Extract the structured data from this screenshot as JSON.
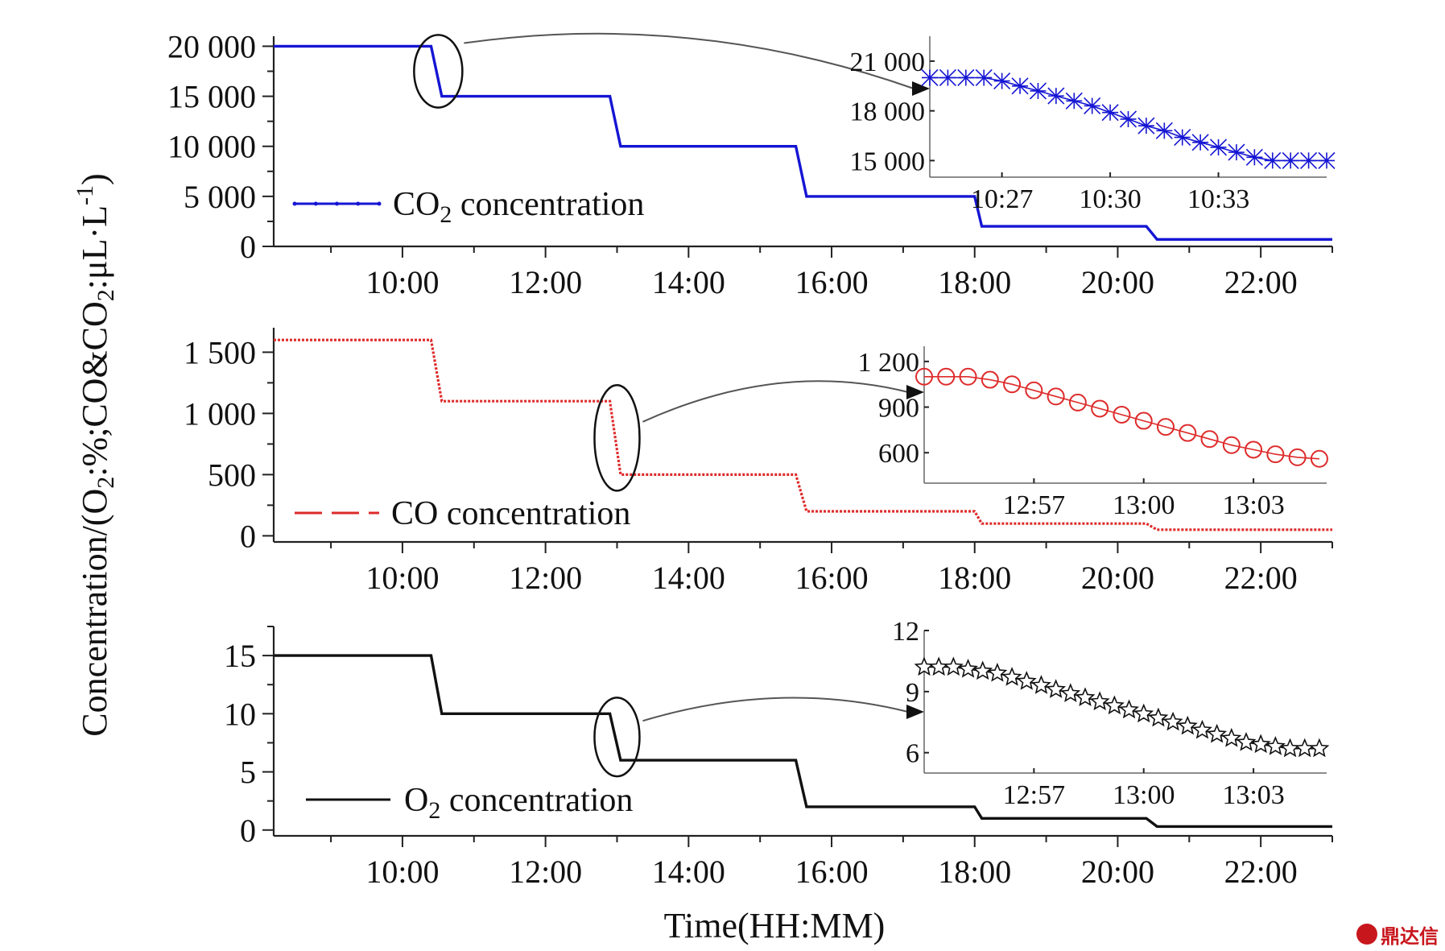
{
  "figure": {
    "ylabel_main": "Concentration/(O",
    "ylabel_sub1": "2",
    "ylabel_mid1": ":%;CO&CO",
    "ylabel_sub2": "2",
    "ylabel_mid2": ":μL·L",
    "ylabel_sup": "-1",
    "ylabel_end": ")",
    "xlabel": "Time(HH:MM)"
  },
  "watermark": {
    "text": "鼎达信"
  },
  "colors": {
    "co2": "#1515d4",
    "co": "#de2a2a",
    "o2": "#111111"
  },
  "chart_data": [
    {
      "type": "line",
      "name": "co2",
      "legend_parts": [
        "CO",
        "2",
        " concentration"
      ],
      "legend_style": "line-with-dots",
      "color_key": "co2",
      "ylim": [
        0,
        21000
      ],
      "yticks": [
        0,
        5000,
        10000,
        15000,
        20000
      ],
      "ytick_labels": [
        "0",
        "5 000",
        "10 000",
        "15 000",
        "20 000"
      ],
      "xlim": [
        8.2,
        23.0
      ],
      "xticks": [
        10,
        12,
        14,
        16,
        18,
        20,
        22
      ],
      "xtick_labels": [
        "10:00",
        "12:00",
        "14:00",
        "16:00",
        "18:00",
        "20:00",
        "22:00"
      ],
      "series": {
        "x": [
          8.2,
          10.4,
          10.55,
          12.9,
          13.05,
          15.5,
          15.65,
          18.0,
          18.1,
          20.4,
          20.55,
          23.0
        ],
        "y": [
          20000,
          20000,
          15000,
          15000,
          10000,
          10000,
          5000,
          5000,
          2000,
          2000,
          700,
          700
        ]
      },
      "highlight": {
        "x": 10.5,
        "y_top": 20000,
        "y_bottom": 15000
      },
      "inset": {
        "marker": "asterisk-x",
        "ylim": [
          14000,
          22500
        ],
        "yticks": [
          15000,
          18000,
          21000
        ],
        "ytick_labels": [
          "15 000",
          "18 000",
          "21 000"
        ],
        "xlim_minutes": [
          625,
          636
        ],
        "xticks_minutes": [
          627,
          630,
          633
        ],
        "xtick_labels": [
          "10:27",
          "10:30",
          "10:33"
        ],
        "x": [
          625.0,
          625.5,
          626.0,
          626.5,
          627.0,
          627.5,
          628.0,
          628.5,
          629.0,
          629.5,
          630.0,
          630.5,
          631.0,
          631.5,
          632.0,
          632.5,
          633.0,
          633.5,
          634.0,
          634.5,
          635.0,
          635.5,
          636.0
        ],
        "y": [
          20000,
          20000,
          20000,
          20000,
          19800,
          19500,
          19200,
          18900,
          18600,
          18300,
          17900,
          17500,
          17100,
          16800,
          16400,
          16100,
          15800,
          15500,
          15200,
          15000,
          15000,
          15000,
          15000
        ]
      }
    },
    {
      "type": "line",
      "name": "co",
      "legend_parts": [
        "CO concentration"
      ],
      "legend_style": "dashed",
      "color_key": "co",
      "ylim": [
        -50,
        1700
      ],
      "yticks": [
        0,
        500,
        1000,
        1500
      ],
      "ytick_labels": [
        "0",
        "500",
        "1 000",
        "1 500"
      ],
      "xlim": [
        8.2,
        23.0
      ],
      "xticks": [
        10,
        12,
        14,
        16,
        18,
        20,
        22
      ],
      "xtick_labels": [
        "10:00",
        "12:00",
        "14:00",
        "16:00",
        "18:00",
        "20:00",
        "22:00"
      ],
      "series": {
        "x": [
          8.2,
          10.4,
          10.55,
          12.9,
          13.05,
          15.5,
          15.65,
          18.0,
          18.1,
          20.4,
          20.55,
          23.0
        ],
        "y": [
          1600,
          1600,
          1100,
          1100,
          500,
          500,
          200,
          200,
          100,
          100,
          50,
          50
        ]
      },
      "highlight": {
        "x": 13.0,
        "y_top": 1100,
        "y_bottom": 500
      },
      "inset": {
        "marker": "circle",
        "ylim": [
          400,
          1300
        ],
        "yticks": [
          600,
          900,
          1200
        ],
        "ytick_labels": [
          "600",
          "900",
          "1 200"
        ],
        "xlim_minutes": [
          774,
          785
        ],
        "xticks_minutes": [
          777,
          780,
          783
        ],
        "xtick_labels": [
          "12:57",
          "13:00",
          "13:03"
        ],
        "x": [
          774.0,
          774.6,
          775.2,
          775.8,
          776.4,
          777.0,
          777.6,
          778.2,
          778.8,
          779.4,
          780.0,
          780.6,
          781.2,
          781.8,
          782.4,
          783.0,
          783.6,
          784.2,
          784.8
        ],
        "y": [
          1100,
          1100,
          1100,
          1080,
          1050,
          1010,
          970,
          930,
          890,
          850,
          810,
          770,
          730,
          690,
          650,
          620,
          590,
          570,
          560
        ]
      }
    },
    {
      "type": "line",
      "name": "o2",
      "legend_parts": [
        "O",
        "2",
        " concentration"
      ],
      "legend_style": "line",
      "color_key": "o2",
      "ylim": [
        -0.5,
        17.5
      ],
      "yticks": [
        0,
        5,
        10,
        15
      ],
      "ytick_labels": [
        "0",
        "5",
        "10",
        "15"
      ],
      "xlim": [
        8.2,
        23.0
      ],
      "xticks": [
        10,
        12,
        14,
        16,
        18,
        20,
        22
      ],
      "xtick_labels": [
        "10:00",
        "12:00",
        "14:00",
        "16:00",
        "18:00",
        "20:00",
        "22:00"
      ],
      "series": {
        "x": [
          8.2,
          10.4,
          10.55,
          12.9,
          13.05,
          15.5,
          15.65,
          18.0,
          18.1,
          20.4,
          20.55,
          23.0
        ],
        "y": [
          15,
          15,
          10,
          10,
          6,
          6,
          2,
          2,
          1,
          1,
          0.3,
          0.3
        ]
      },
      "highlight": {
        "x": 13.0,
        "y_top": 10,
        "y_bottom": 6
      },
      "inset": {
        "marker": "star",
        "ylim": [
          5,
          12
        ],
        "yticks": [
          6,
          9,
          12
        ],
        "ytick_labels": [
          "6",
          "9",
          "12"
        ],
        "xlim_minutes": [
          774,
          785
        ],
        "xticks_minutes": [
          777,
          780,
          783
        ],
        "xtick_labels": [
          "12:57",
          "13:00",
          "13:03"
        ],
        "x": [
          774.0,
          774.4,
          774.8,
          775.2,
          775.6,
          776.0,
          776.4,
          776.8,
          777.2,
          777.6,
          778.0,
          778.4,
          778.8,
          779.2,
          779.6,
          780.0,
          780.4,
          780.8,
          781.2,
          781.6,
          782.0,
          782.4,
          782.8,
          783.2,
          783.6,
          784.0,
          784.4,
          784.8
        ],
        "y": [
          10.2,
          10.2,
          10.2,
          10.1,
          10.0,
          9.9,
          9.7,
          9.5,
          9.3,
          9.1,
          8.9,
          8.7,
          8.5,
          8.3,
          8.1,
          7.9,
          7.7,
          7.5,
          7.3,
          7.1,
          6.9,
          6.7,
          6.5,
          6.4,
          6.3,
          6.2,
          6.2,
          6.2
        ]
      }
    }
  ]
}
